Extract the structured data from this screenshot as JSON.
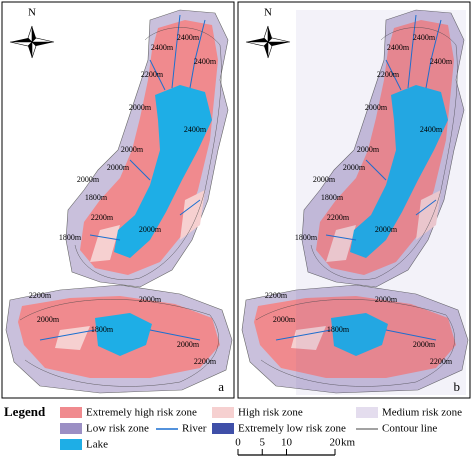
{
  "north": "N",
  "panels": [
    {
      "label": "a",
      "contour_labels": [
        "2400m",
        "2400m",
        "2400m",
        "2200m",
        "2000m",
        "2400m",
        "2000m",
        "2000m",
        "2000m",
        "1800m",
        "1800m",
        "2000m",
        "2200m",
        "2200m",
        "2000m",
        "1800m",
        "2000m",
        "2200m",
        "2000m"
      ]
    },
    {
      "label": "b",
      "contour_labels": [
        "2400m",
        "2400m",
        "2400m",
        "2200m",
        "2000m",
        "2400m",
        "2000m",
        "2000m",
        "2000m",
        "1800m",
        "1800m",
        "2000m",
        "2200m",
        "2200m",
        "2000m",
        "1800m",
        "2000m",
        "2200m",
        "2000m"
      ]
    }
  ],
  "legend": {
    "title": "Legend",
    "items": [
      "Extremely high risk zone",
      "High risk zone",
      "Medium risk zone",
      "Low risk zone",
      "River",
      "Extremely low risk zone",
      "Contour line",
      "Lake"
    ]
  },
  "scale": {
    "ticks": [
      0,
      5,
      10,
      20
    ],
    "unit": "km"
  }
}
